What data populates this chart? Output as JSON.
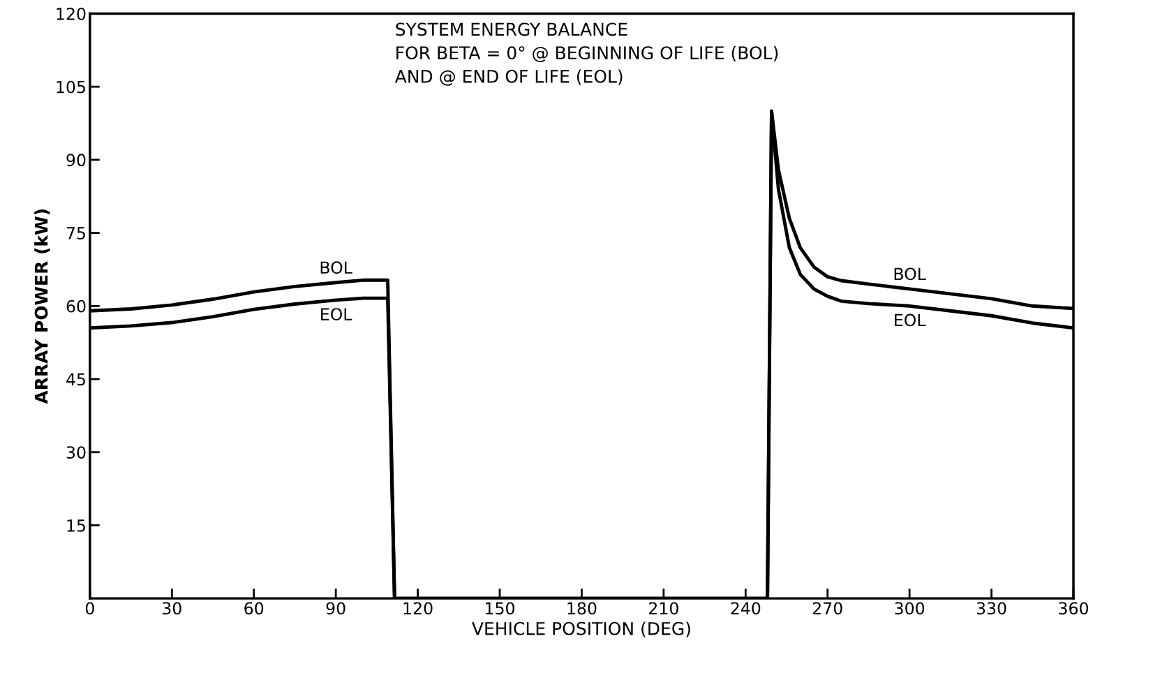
{
  "chart_data": {
    "type": "line",
    "title": "SYSTEM ENERGY BALANCE\nFOR BETA = 0° @ BEGINNING OF LIFE (BOL)\nAND @ END OF LIFE (EOL)",
    "xlabel": "VEHICLE POSITION (DEG)",
    "ylabel": "ARRAY POWER (kW)",
    "x": [
      0,
      15,
      30,
      45,
      60,
      75,
      90,
      100,
      109,
      111.5,
      248,
      249.5,
      252,
      256,
      260,
      265,
      270,
      275,
      285,
      300,
      315,
      330,
      345,
      360
    ],
    "series": [
      {
        "name": "BOL",
        "color": "#000000",
        "values": [
          59,
          59.4,
          60.2,
          61.4,
          62.9,
          64,
          64.8,
          65.3,
          65.3,
          0,
          0,
          100,
          88,
          78,
          72,
          68,
          66,
          65.2,
          64.5,
          63.5,
          62.5,
          61.5,
          60,
          59.5
        ]
      },
      {
        "name": "EOL",
        "color": "#000000",
        "values": [
          55.5,
          55.9,
          56.6,
          57.8,
          59.3,
          60.4,
          61.2,
          61.6,
          61.6,
          0,
          0,
          100,
          84,
          72,
          66.5,
          63.5,
          62,
          61,
          60.5,
          60,
          59,
          58,
          56.5,
          55.5
        ]
      }
    ],
    "xlim": [
      0,
      360
    ],
    "xticks": [
      0,
      30,
      60,
      90,
      120,
      150,
      180,
      210,
      240,
      270,
      300,
      330,
      360
    ],
    "ylim": [
      0,
      120
    ],
    "yticks": [
      15,
      30,
      45,
      60,
      75,
      90,
      105,
      120
    ],
    "grid": false,
    "legend": false,
    "marker": "none",
    "line_style": "solid"
  }
}
